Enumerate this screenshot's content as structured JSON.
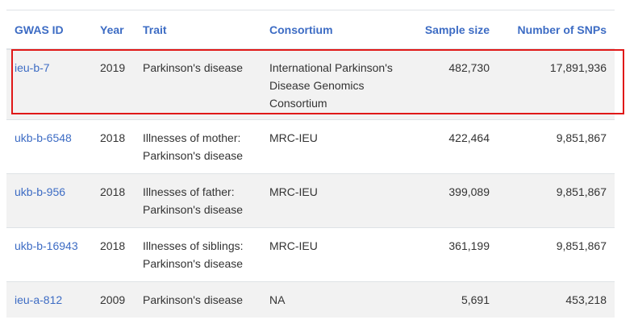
{
  "headers": {
    "gwas_id": "GWAS ID",
    "year": "Year",
    "trait": "Trait",
    "consortium": "Consortium",
    "sample_size": "Sample size",
    "num_snps": "Number of SNPs"
  },
  "rows": [
    {
      "gwas_id": "ieu-b-7",
      "year": "2019",
      "trait": "Parkinson's disease",
      "consortium": "International Parkinson's Disease Genomics Consortium",
      "sample_size": "482,730",
      "num_snps": "17,891,936"
    },
    {
      "gwas_id": "ukb-b-6548",
      "year": "2018",
      "trait": "Illnesses of mother: Parkinson's disease",
      "consortium": "MRC-IEU",
      "sample_size": "422,464",
      "num_snps": "9,851,867"
    },
    {
      "gwas_id": "ukb-b-956",
      "year": "2018",
      "trait": "Illnesses of father: Parkinson's disease",
      "consortium": "MRC-IEU",
      "sample_size": "399,089",
      "num_snps": "9,851,867"
    },
    {
      "gwas_id": "ukb-b-16943",
      "year": "2018",
      "trait": "Illnesses of siblings: Parkinson's disease",
      "consortium": "MRC-IEU",
      "sample_size": "361,199",
      "num_snps": "9,851,867"
    },
    {
      "gwas_id": "ieu-a-812",
      "year": "2009",
      "trait": "Parkinson's disease",
      "consortium": "NA",
      "sample_size": "5,691",
      "num_snps": "453,218"
    }
  ],
  "colors": {
    "link": "#3d6cc4",
    "stripe": "#f2f2f2",
    "highlight": "#e01818"
  }
}
